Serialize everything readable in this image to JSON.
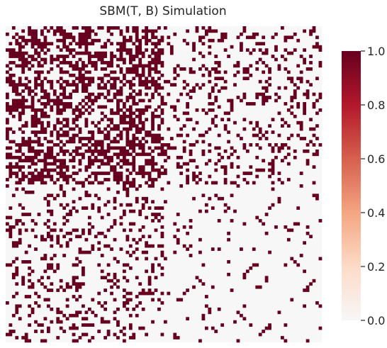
{
  "chart_data": {
    "type": "heatmap",
    "title": "SBM(T, B) Simulation",
    "xlabel": "",
    "ylabel": "",
    "rows": 100,
    "cols": 100,
    "blocks": [
      {
        "name": "",
        "size": 50
      },
      {
        "name": "",
        "size": 50
      }
    ],
    "block_edge_probabilities": [
      [
        0.5,
        0.2
      ],
      [
        0.2,
        0.05
      ]
    ],
    "value_range": [
      0.0,
      1.0
    ],
    "colorbar": {
      "ticks": [
        0.0,
        0.2,
        0.4,
        0.6,
        0.8,
        1.0
      ],
      "tick_labels": [
        "0.0",
        "0.2",
        "0.4",
        "0.6",
        "0.8",
        "1.0"
      ],
      "colormap": "RdBu_r (positive half)",
      "low_color": "#f7f7f7",
      "high_color": "#67001f"
    },
    "grid": false,
    "legend": "colorbar-right"
  }
}
